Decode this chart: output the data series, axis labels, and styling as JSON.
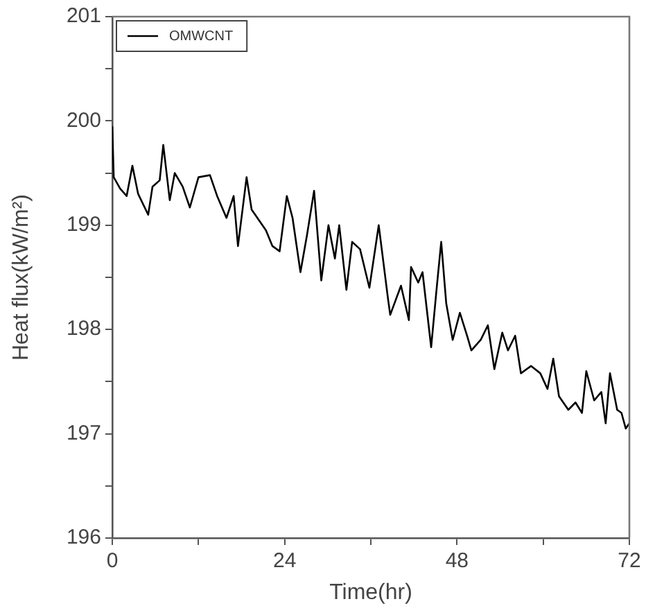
{
  "chart_data": {
    "type": "line",
    "xlabel": "Time(hr)",
    "ylabel": "Heat flux(kW/m²)",
    "legend": "top left",
    "marker": "none",
    "line_style": "solid",
    "grid": false,
    "xlim": [
      0,
      72
    ],
    "xticks": [
      0,
      {
        "value": 12,
        "label": null
      },
      24,
      {
        "value": 36,
        "label": null
      },
      48,
      {
        "value": 60,
        "label": null
      },
      72
    ],
    "ylim": [
      196,
      201
    ],
    "yticks": [
      196,
      {
        "value": 196.5,
        "label": null
      },
      197,
      {
        "value": 197.5,
        "label": null
      },
      198,
      {
        "value": 198.5,
        "label": null
      },
      199,
      {
        "value": 199.5,
        "label": null
      },
      200,
      {
        "value": 200.5,
        "label": null
      },
      201
    ],
    "series": [
      {
        "name": "OMWCNT",
        "color": "#000000",
        "x": [
          0,
          0.2,
          1.1,
          2.0,
          2.8,
          3.6,
          5.0,
          5.6,
          6.6,
          7.1,
          8.0,
          8.7,
          9.8,
          10.8,
          12.0,
          13.6,
          14.6,
          15.9,
          16.9,
          17.5,
          18.7,
          19.4,
          21.4,
          22.3,
          23.3,
          24.3,
          25.1,
          26.2,
          27.1,
          28.1,
          29.1,
          30.1,
          31.0,
          31.6,
          32.6,
          33.4,
          34.5,
          35.8,
          37.1,
          38.4,
          38.7,
          40.2,
          41.3,
          41.6,
          42.6,
          43.2,
          44.4,
          45.2,
          45.8,
          46.5,
          47.4,
          48.4,
          49.4,
          50.0,
          51.3,
          52.3,
          53.2,
          54.3,
          55.1,
          56.1,
          56.9,
          58.3,
          59.6,
          60.6,
          61.4,
          62.2,
          63.5,
          64.5,
          65.4,
          66.0,
          67.1,
          68.1,
          68.7,
          69.3,
          70.3,
          70.9,
          71.5,
          72.0
        ],
        "values": [
          199.95,
          199.46,
          199.35,
          199.28,
          199.57,
          199.3,
          199.1,
          199.37,
          199.43,
          199.77,
          199.24,
          199.5,
          199.37,
          199.17,
          199.46,
          199.48,
          199.28,
          199.07,
          199.28,
          198.8,
          199.46,
          199.15,
          198.95,
          198.8,
          198.75,
          199.28,
          199.07,
          198.55,
          198.9,
          199.33,
          198.47,
          199.0,
          198.68,
          199.0,
          198.38,
          198.84,
          198.77,
          198.4,
          199.0,
          198.29,
          198.14,
          198.42,
          198.09,
          198.6,
          198.45,
          198.55,
          197.83,
          198.42,
          198.84,
          198.25,
          197.9,
          198.16,
          197.94,
          197.8,
          197.9,
          198.04,
          197.62,
          197.97,
          197.8,
          197.94,
          197.58,
          197.65,
          197.58,
          197.43,
          197.72,
          197.36,
          197.23,
          197.3,
          197.2,
          197.6,
          197.32,
          197.4,
          197.1,
          197.58,
          197.23,
          197.2,
          197.05,
          197.1
        ]
      }
    ]
  }
}
